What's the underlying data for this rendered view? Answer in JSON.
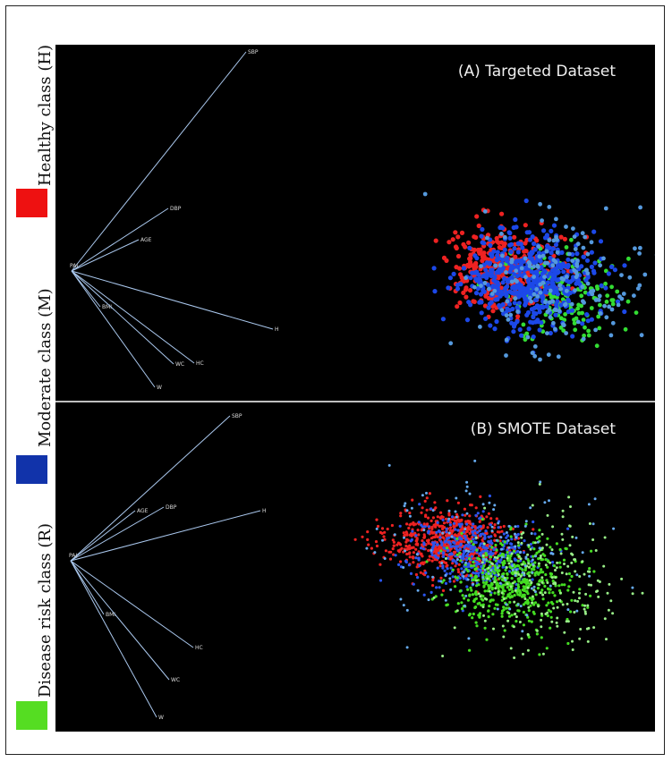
{
  "legend": [
    {
      "label": "Healthy class (H)",
      "color": "#ee1111"
    },
    {
      "label": "Moderate class (M)",
      "color": "#1133aa"
    },
    {
      "label": "Disease risk class (R)",
      "color": "#55dd22"
    }
  ],
  "chart_data": [
    {
      "type": "scatter",
      "title": "(A) Targeted Dataset",
      "origin_label": "PAI",
      "axis_color": "#aac8ee",
      "axes": [
        {
          "label": "SBP",
          "dx": 195,
          "dy": -245
        },
        {
          "label": "DBP",
          "dx": 108,
          "dy": -70
        },
        {
          "label": "AGE",
          "dx": 75,
          "dy": -35
        },
        {
          "label": "H",
          "dx": 225,
          "dy": 65
        },
        {
          "label": "BMI",
          "dx": 32,
          "dy": 40
        },
        {
          "label": "HC",
          "dx": 137,
          "dy": 103
        },
        {
          "label": "WC",
          "dx": 114,
          "dy": 104
        },
        {
          "label": "W",
          "dx": 93,
          "dy": 130
        }
      ],
      "clusters": [
        {
          "class": "Healthy class (H)",
          "color": "#ee2222",
          "cx": 500,
          "cy": 250,
          "sx": 30,
          "sy": 23,
          "n": 330,
          "r": 2.6
        },
        {
          "class": "Disease risk class (R)",
          "color": "#33dd33",
          "cx": 578,
          "cy": 283,
          "sx": 35,
          "sy": 25,
          "n": 150,
          "r": 2.4
        },
        {
          "class": "Moderate class (M)",
          "color": "#1c48e8",
          "cx": 532,
          "cy": 262,
          "sx": 38,
          "sy": 27,
          "n": 520,
          "r": 2.6
        },
        {
          "class": "Moderate class (M)",
          "color": "#5599dd",
          "cx": 560,
          "cy": 265,
          "sx": 52,
          "sy": 40,
          "n": 170,
          "r": 2.4
        }
      ],
      "seed": 7
    },
    {
      "type": "scatter",
      "title": "(B) SMOTE Dataset",
      "origin_label": "PAI",
      "axis_color": "#aac8ee",
      "axes": [
        {
          "label": "SBP",
          "dx": 178,
          "dy": -162
        },
        {
          "label": "AGE",
          "dx": 72,
          "dy": -56
        },
        {
          "label": "DBP",
          "dx": 104,
          "dy": -60
        },
        {
          "label": "H",
          "dx": 212,
          "dy": -56
        },
        {
          "label": "BMI",
          "dx": 37,
          "dy": 60
        },
        {
          "label": "HC",
          "dx": 137,
          "dy": 97
        },
        {
          "label": "WC",
          "dx": 110,
          "dy": 133
        },
        {
          "label": "W",
          "dx": 96,
          "dy": 175
        }
      ],
      "clusters": [
        {
          "class": "Healthy class (H)",
          "color": "#ee2222",
          "cx": 435,
          "cy": 155,
          "sx": 34,
          "sy": 18,
          "n": 650,
          "r": 1.6
        },
        {
          "class": "Moderate class (M)",
          "color": "#2a55ee",
          "cx": 470,
          "cy": 168,
          "sx": 34,
          "sy": 20,
          "n": 420,
          "r": 1.6
        },
        {
          "class": "Disease risk class (R)",
          "color": "#44dd22",
          "cx": 508,
          "cy": 200,
          "sx": 34,
          "sy": 23,
          "n": 520,
          "r": 1.6
        },
        {
          "class": "Disease risk class (R)",
          "color": "#99ee88",
          "cx": 545,
          "cy": 205,
          "sx": 45,
          "sy": 35,
          "n": 210,
          "r": 1.5
        },
        {
          "class": "Moderate class (M)",
          "color": "#66aaee",
          "cx": 480,
          "cy": 170,
          "sx": 60,
          "sy": 36,
          "n": 140,
          "r": 1.5
        }
      ],
      "seed": 23
    }
  ]
}
